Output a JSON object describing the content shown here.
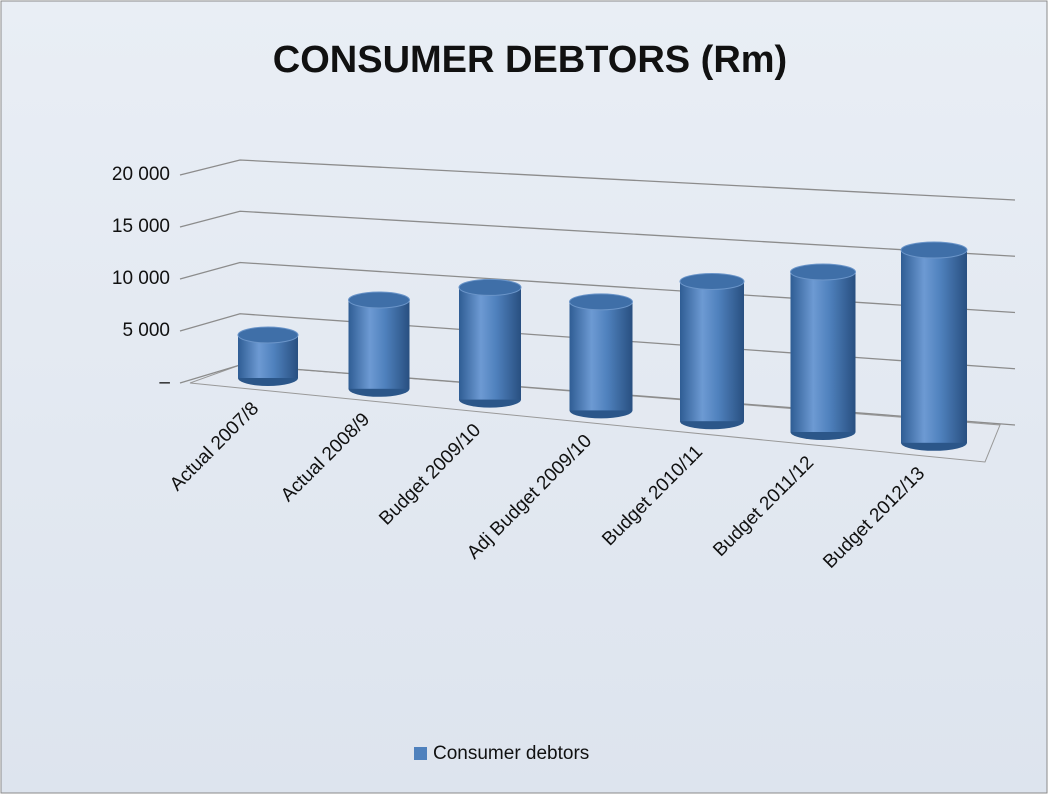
{
  "chart_data": {
    "type": "bar",
    "title": "CONSUMER DEBTORS (Rm)",
    "categories": [
      "Actual 2007/8",
      "Actual 2008/9",
      "Budget 2009/10",
      "Adj Budget 2009/10",
      "Budget 2010/11",
      "Budget 2011/12",
      "Budget 2012/13"
    ],
    "series": [
      {
        "name": "Consumer debtors",
        "color": "#4f81bd",
        "values": [
          4000,
          8000,
          9800,
          9200,
          11500,
          12800,
          15000
        ]
      }
    ],
    "ylim": [
      0,
      20000
    ],
    "yticks": [
      {
        "value": 0,
        "label": "–"
      },
      {
        "value": 5000,
        "label": "5 000"
      },
      {
        "value": 10000,
        "label": "10 000"
      },
      {
        "value": 15000,
        "label": "15 000"
      },
      {
        "value": 20000,
        "label": "20 000"
      }
    ],
    "grid": true,
    "legend": "bottom"
  }
}
